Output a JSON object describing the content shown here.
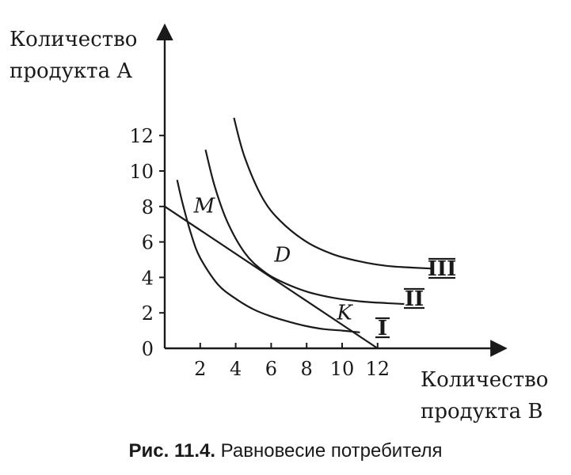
{
  "chart_data": {
    "type": "line",
    "ylabel": [
      "Количество",
      "продукта А"
    ],
    "xlabel": [
      "Количество",
      "продукта В"
    ],
    "x_ticks": [
      2,
      4,
      6,
      8,
      10,
      12
    ],
    "y_ticks": [
      0,
      2,
      4,
      6,
      8,
      10,
      12
    ],
    "xlim": [
      0,
      19
    ],
    "ylim": [
      0,
      18
    ],
    "budget_line": {
      "x": [
        0,
        12
      ],
      "y": [
        8,
        0
      ]
    },
    "series": [
      {
        "name": "I",
        "x": [
          0.7,
          1,
          1.5,
          2,
          3,
          4,
          5,
          6,
          7,
          8,
          9,
          10,
          10.5,
          11
        ],
        "y": [
          9.5,
          8.2,
          6.4,
          5.1,
          3.6,
          2.8,
          2.2,
          1.8,
          1.5,
          1.25,
          1.08,
          1.0,
          0.95,
          0.9
        ]
      },
      {
        "name": "II",
        "x": [
          2.3,
          2.8,
          3.5,
          4.5,
          5.5,
          6.5,
          8,
          9.5,
          11,
          12.5,
          13.5
        ],
        "y": [
          11.2,
          9.2,
          7.2,
          5.4,
          4.4,
          3.8,
          3.2,
          2.85,
          2.65,
          2.55,
          2.5
        ]
      },
      {
        "name": "III",
        "x": [
          3.9,
          4.5,
          5.5,
          6.5,
          8,
          9.5,
          11,
          12.5,
          14,
          15
        ],
        "y": [
          13.0,
          10.8,
          8.5,
          7.2,
          6.0,
          5.3,
          4.9,
          4.65,
          4.55,
          4.5
        ]
      }
    ],
    "points": [
      {
        "label": "M",
        "x": 1.1,
        "y": 7.3
      },
      {
        "label": "D",
        "x": 6,
        "y": 4
      },
      {
        "label": "K",
        "x": 10.5,
        "y": 1
      }
    ],
    "curve_labels": [
      "I",
      "II",
      "III"
    ],
    "grid": false
  },
  "caption": {
    "prefix": "Рис. 11.4.",
    "text": " Равновесие потребителя"
  }
}
